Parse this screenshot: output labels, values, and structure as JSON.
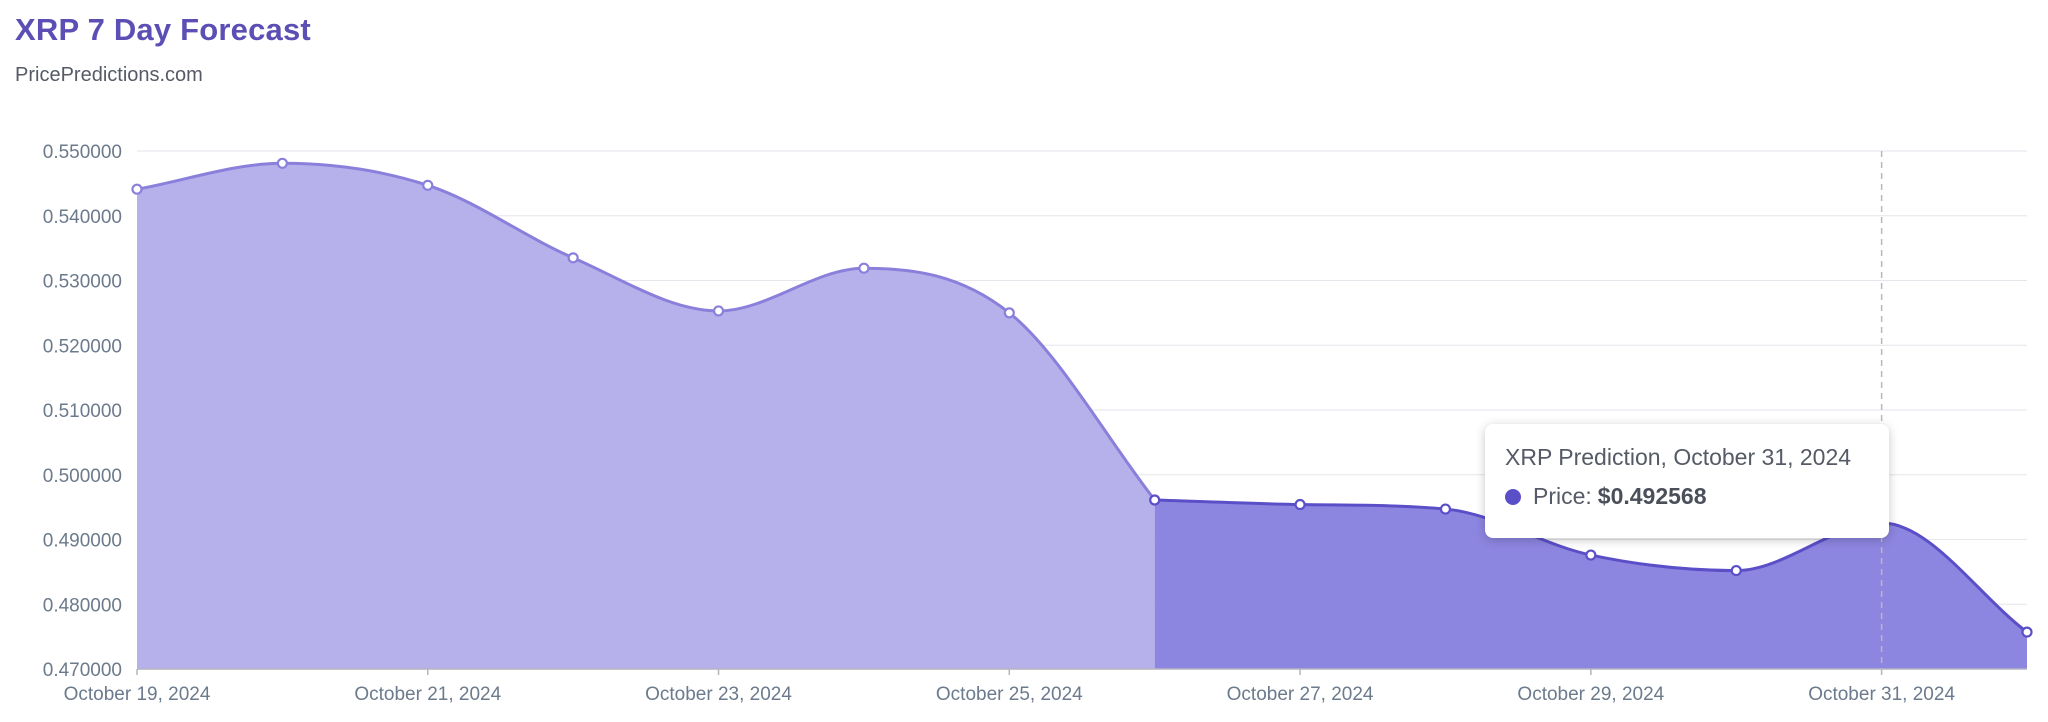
{
  "header": {
    "title": "XRP 7 Day Forecast",
    "subtitle": "PricePredictions.com"
  },
  "colors": {
    "title": "#5b4fb5",
    "history_fill": "#b7b1eb",
    "history_line": "#8a80dc",
    "forecast_fill": "#8d86e0",
    "forecast_line": "#5b4fc8",
    "grid": "#e6e6ec"
  },
  "tooltip": {
    "title": "XRP Prediction, October 31, 2024",
    "label": "Price:",
    "value": "$0.492568"
  },
  "chart_data": {
    "type": "area",
    "x": [
      "2024-10-19",
      "2024-10-20",
      "2024-10-21",
      "2024-10-22",
      "2024-10-23",
      "2024-10-24",
      "2024-10-25",
      "2024-10-26",
      "2024-10-27",
      "2024-10-28",
      "2024-10-29",
      "2024-10-30",
      "2024-10-31",
      "2024-11-01"
    ],
    "series": [
      {
        "values": [
          0.5441,
          0.5481,
          0.5447,
          0.5335,
          0.5253,
          0.5319,
          0.525,
          0.4961,
          0.4954,
          0.4947,
          0.4876,
          0.4852,
          0.492568,
          0.4757
        ]
      }
    ],
    "forecast_start": "2024-10-26",
    "ylim": [
      0.47,
      0.55
    ],
    "yticks": [
      "0.550000",
      "0.540000",
      "0.530000",
      "0.520000",
      "0.510000",
      "0.500000",
      "0.490000",
      "0.480000",
      "0.470000"
    ],
    "xticks": [
      {
        "date": "2024-10-19",
        "label": "October 19, 2024"
      },
      {
        "date": "2024-10-21",
        "label": "October 21, 2024"
      },
      {
        "date": "2024-10-23",
        "label": "October 23, 2024"
      },
      {
        "date": "2024-10-25",
        "label": "October 25, 2024"
      },
      {
        "date": "2024-10-27",
        "label": "October 27, 2024"
      },
      {
        "date": "2024-10-29",
        "label": "October 29, 2024"
      },
      {
        "date": "2024-10-31",
        "label": "October 31, 2024"
      }
    ],
    "highlight_date": "2024-10-31",
    "grid": true,
    "legend": "none"
  }
}
